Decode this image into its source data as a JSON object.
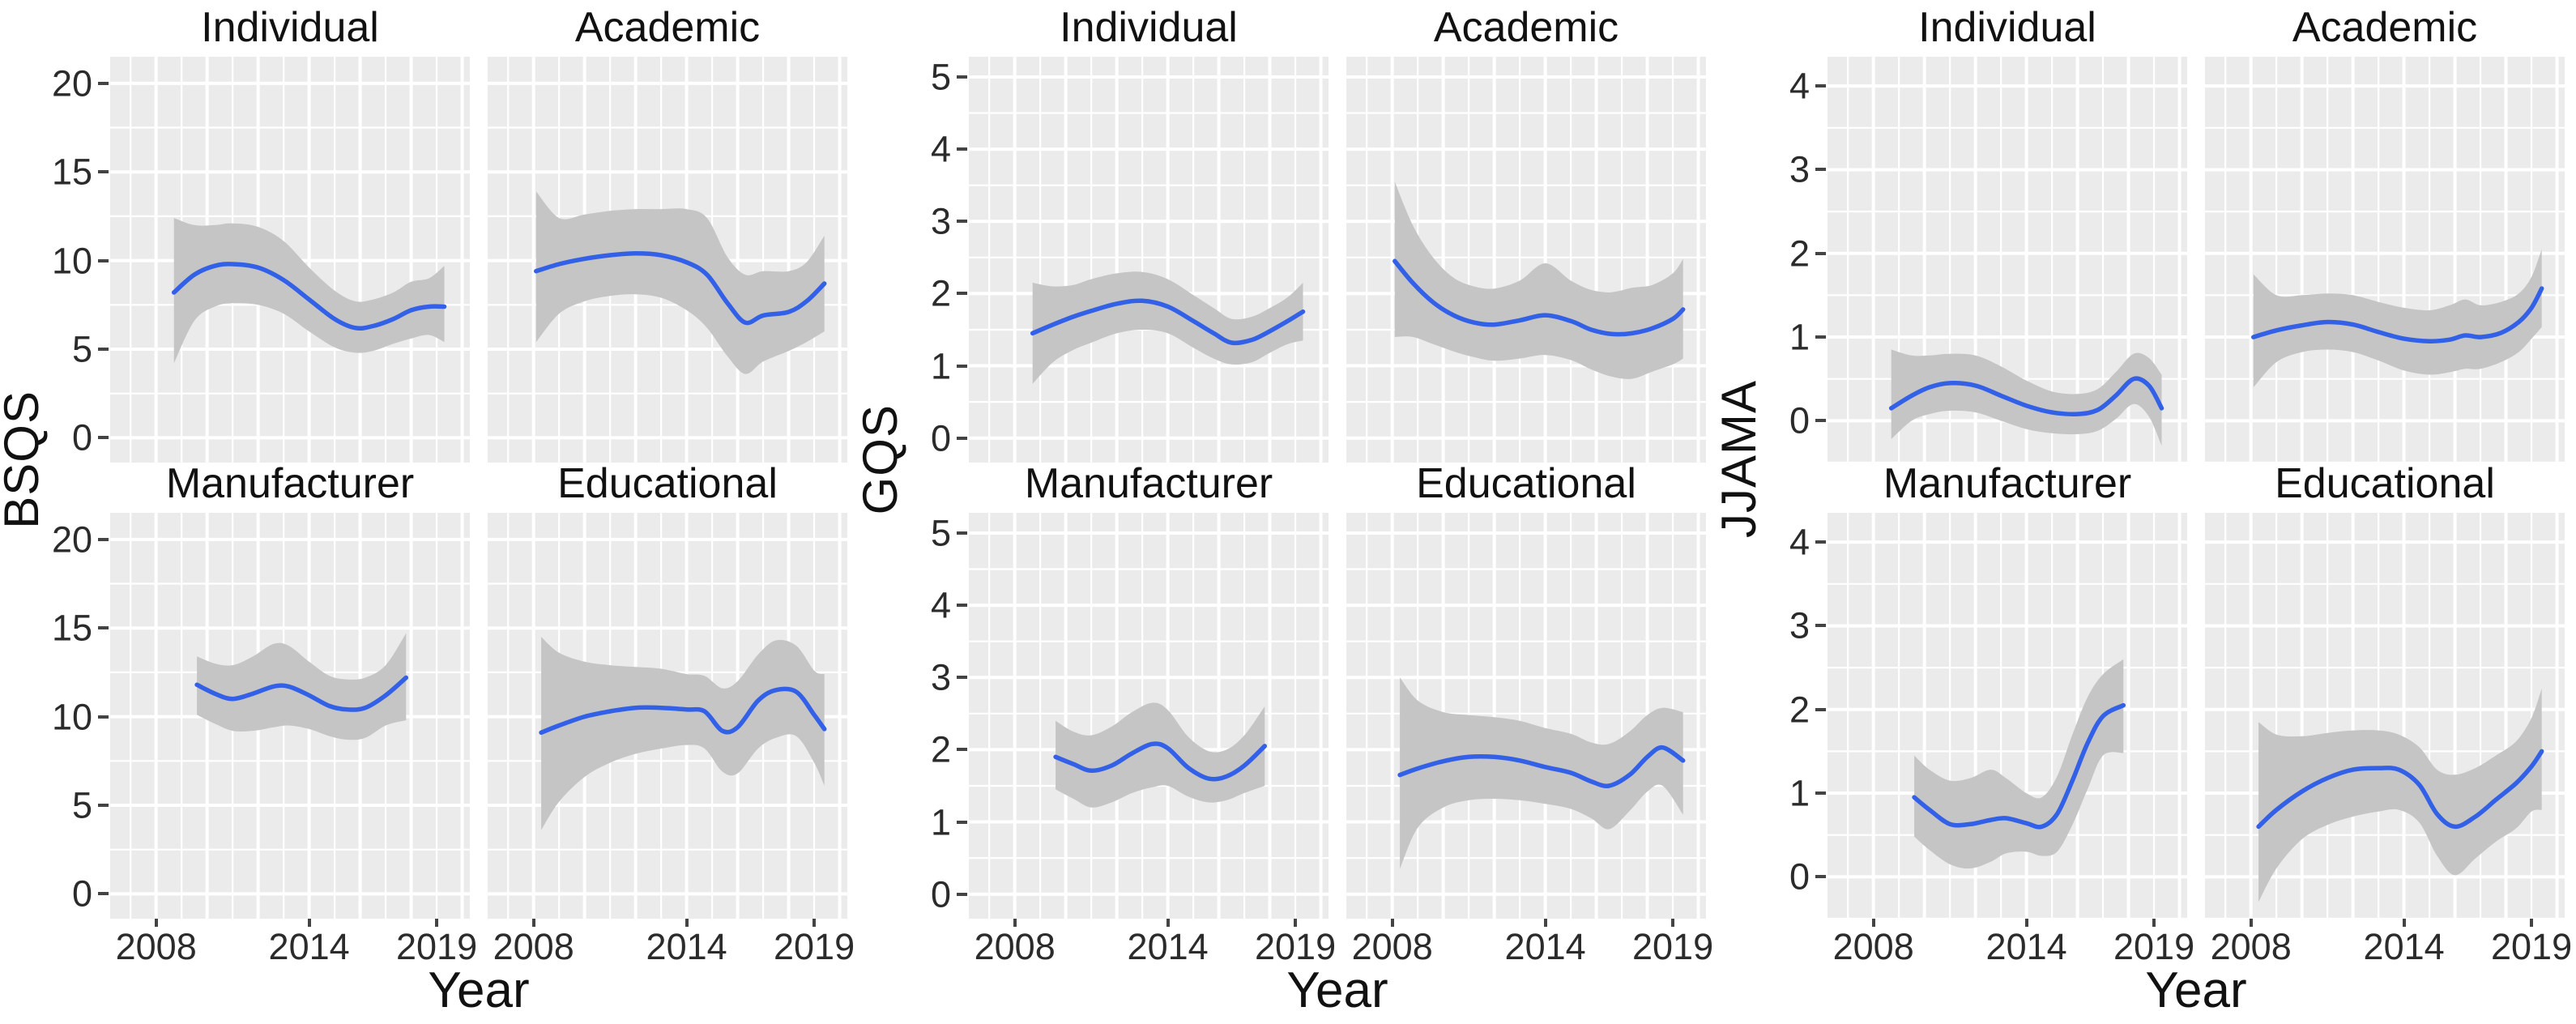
{
  "style": {
    "panel_bg": "#EBEBEB",
    "grid_color": "#FFFFFF",
    "ribbon_color": "#C5C5C5",
    "line_color": "#3260E6",
    "text_color": "#111111",
    "tick_text_color": "#2B2B2B",
    "tick_mark_color": "#444444"
  },
  "chart_data": [
    {
      "type": "line",
      "title": "",
      "ylabel": "BSQS",
      "xlabel": "Year",
      "legend": "none",
      "grid": "on",
      "x_ticks": [
        2008,
        2014,
        2019
      ],
      "y_ticks": [
        0,
        5,
        10,
        15,
        20
      ],
      "xlim_draw": [
        2006.2,
        2020.3
      ],
      "ylim_draw": [
        -1.4,
        21.5
      ],
      "facets": [
        {
          "label": "Individual",
          "x": [
            2008.7,
            2009.5,
            2010.3,
            2011,
            2012,
            2013,
            2014,
            2015,
            2015.8,
            2016.5,
            2017.3,
            2018,
            2018.7,
            2019.3
          ],
          "y": [
            8.2,
            9.2,
            9.7,
            9.8,
            9.6,
            8.9,
            7.8,
            6.7,
            6.2,
            6.3,
            6.7,
            7.2,
            7.4,
            7.4
          ],
          "lo": [
            4.2,
            6.6,
            7.4,
            7.6,
            7.5,
            7.0,
            6.0,
            5.1,
            4.8,
            4.9,
            5.3,
            5.6,
            5.8,
            5.4
          ],
          "hi": [
            12.4,
            12.0,
            12.0,
            12.1,
            11.9,
            11.1,
            9.6,
            8.3,
            7.7,
            7.8,
            8.2,
            8.8,
            9.0,
            9.7
          ]
        },
        {
          "label": "Academic",
          "x": [
            2008.1,
            2009,
            2010,
            2011,
            2012,
            2013,
            2014,
            2014.8,
            2015.6,
            2016.3,
            2017,
            2018,
            2018.7,
            2019.4
          ],
          "y": [
            9.4,
            9.8,
            10.1,
            10.3,
            10.4,
            10.3,
            9.9,
            9.2,
            7.6,
            6.5,
            6.9,
            7.1,
            7.7,
            8.7
          ],
          "lo": [
            5.4,
            7.0,
            7.7,
            8.0,
            8.1,
            7.9,
            7.2,
            6.2,
            4.6,
            3.6,
            4.3,
            4.9,
            5.4,
            6.0
          ],
          "hi": [
            13.9,
            12.4,
            12.6,
            12.8,
            12.9,
            12.9,
            12.9,
            12.4,
            10.2,
            9.2,
            9.4,
            9.4,
            9.9,
            11.4
          ]
        },
        {
          "label": "Manufacturer",
          "x": [
            2009.6,
            2010.3,
            2011,
            2011.8,
            2012.6,
            2013.2,
            2014,
            2014.8,
            2015.5,
            2016.2,
            2017,
            2017.8
          ],
          "y": [
            11.8,
            11.3,
            11.0,
            11.3,
            11.7,
            11.7,
            11.2,
            10.6,
            10.4,
            10.5,
            11.2,
            12.2
          ],
          "lo": [
            10.1,
            9.6,
            9.2,
            9.2,
            9.4,
            9.5,
            9.3,
            8.9,
            8.7,
            8.8,
            9.5,
            9.8
          ],
          "hi": [
            13.4,
            13.0,
            12.9,
            13.4,
            14.1,
            14.0,
            13.1,
            12.3,
            12.1,
            12.2,
            12.9,
            14.7
          ]
        },
        {
          "label": "Educational",
          "x": [
            2008.3,
            2009,
            2010,
            2011,
            2012,
            2013,
            2014,
            2014.7,
            2015.4,
            2016,
            2016.8,
            2017.5,
            2018.3,
            2019,
            2019.4
          ],
          "y": [
            9.1,
            9.5,
            10.0,
            10.3,
            10.5,
            10.5,
            10.4,
            10.3,
            9.2,
            9.4,
            10.9,
            11.5,
            11.4,
            10.1,
            9.3
          ],
          "lo": [
            3.6,
            5.2,
            6.6,
            7.4,
            7.9,
            8.2,
            8.4,
            8.2,
            6.9,
            6.8,
            8.2,
            8.8,
            8.9,
            7.4,
            6.1
          ],
          "hi": [
            14.5,
            13.6,
            13.1,
            12.9,
            12.8,
            12.7,
            12.4,
            12.3,
            11.6,
            12.0,
            13.5,
            14.3,
            14.0,
            12.6,
            12.4
          ]
        }
      ]
    },
    {
      "type": "line",
      "title": "",
      "ylabel": "GQS",
      "xlabel": "Year",
      "legend": "none",
      "grid": "on",
      "x_ticks": [
        2008,
        2014,
        2019
      ],
      "y_ticks": [
        0,
        1,
        2,
        3,
        4,
        5
      ],
      "xlim_draw": [
        2006.2,
        2020.3
      ],
      "ylim_draw": [
        -0.34,
        5.28
      ],
      "facets": [
        {
          "label": "Individual",
          "x": [
            2008.7,
            2009.5,
            2010.3,
            2011,
            2012,
            2013,
            2014,
            2015,
            2015.8,
            2016.5,
            2017.3,
            2018,
            2018.7,
            2019.3
          ],
          "y": [
            1.45,
            1.57,
            1.68,
            1.76,
            1.86,
            1.9,
            1.82,
            1.62,
            1.45,
            1.32,
            1.36,
            1.48,
            1.62,
            1.75
          ],
          "lo": [
            0.75,
            1.05,
            1.22,
            1.32,
            1.45,
            1.5,
            1.45,
            1.25,
            1.1,
            1.02,
            1.05,
            1.18,
            1.3,
            1.35
          ],
          "hi": [
            2.15,
            2.1,
            2.12,
            2.2,
            2.28,
            2.3,
            2.2,
            1.98,
            1.8,
            1.65,
            1.68,
            1.8,
            1.95,
            2.15
          ]
        },
        {
          "label": "Academic",
          "x": [
            2008.1,
            2008.8,
            2009.6,
            2010.4,
            2011.2,
            2012,
            2013,
            2014,
            2015,
            2015.8,
            2016.6,
            2017.4,
            2018.2,
            2019,
            2019.4
          ],
          "y": [
            2.45,
            2.15,
            1.88,
            1.7,
            1.6,
            1.57,
            1.63,
            1.7,
            1.62,
            1.5,
            1.44,
            1.45,
            1.52,
            1.65,
            1.78
          ],
          "lo": [
            1.4,
            1.4,
            1.3,
            1.2,
            1.12,
            1.07,
            1.1,
            1.15,
            1.08,
            0.95,
            0.85,
            0.82,
            0.92,
            1.02,
            1.1
          ],
          "hi": [
            3.55,
            2.95,
            2.5,
            2.22,
            2.1,
            2.07,
            2.18,
            2.42,
            2.18,
            2.05,
            2.02,
            2.08,
            2.12,
            2.28,
            2.48
          ]
        },
        {
          "label": "Manufacturer",
          "x": [
            2009.6,
            2010.3,
            2011,
            2011.8,
            2012.6,
            2013.4,
            2014,
            2014.8,
            2015.6,
            2016.3,
            2017,
            2017.8
          ],
          "y": [
            1.9,
            1.8,
            1.71,
            1.78,
            1.95,
            2.08,
            2.02,
            1.75,
            1.6,
            1.63,
            1.78,
            2.05
          ],
          "lo": [
            1.45,
            1.32,
            1.2,
            1.27,
            1.4,
            1.48,
            1.5,
            1.35,
            1.27,
            1.3,
            1.4,
            1.5
          ],
          "hi": [
            2.4,
            2.25,
            2.2,
            2.32,
            2.52,
            2.65,
            2.55,
            2.18,
            1.98,
            2.0,
            2.2,
            2.6
          ]
        },
        {
          "label": "Educational",
          "x": [
            2008.3,
            2009,
            2010,
            2011,
            2012,
            2013,
            2014,
            2015,
            2015.8,
            2016.5,
            2017.3,
            2018,
            2018.6,
            2019.4
          ],
          "y": [
            1.65,
            1.74,
            1.84,
            1.9,
            1.9,
            1.85,
            1.76,
            1.68,
            1.56,
            1.5,
            1.65,
            1.9,
            2.03,
            1.85
          ],
          "lo": [
            0.35,
            0.92,
            1.2,
            1.3,
            1.32,
            1.3,
            1.25,
            1.18,
            1.05,
            0.9,
            1.15,
            1.42,
            1.5,
            1.1
          ],
          "hi": [
            3.0,
            2.68,
            2.52,
            2.48,
            2.45,
            2.4,
            2.3,
            2.22,
            2.1,
            2.08,
            2.25,
            2.48,
            2.58,
            2.52
          ]
        }
      ]
    },
    {
      "type": "line",
      "title": "",
      "ylabel": "JJAMA",
      "xlabel": "Year",
      "legend": "none",
      "grid": "on",
      "x_ticks": [
        2008,
        2014,
        2019
      ],
      "y_ticks": [
        0,
        1,
        2,
        3,
        4
      ],
      "xlim_draw": [
        2006.2,
        2020.3
      ],
      "ylim_draw": [
        -0.5,
        4.35
      ],
      "facets": [
        {
          "label": "Individual",
          "x": [
            2008.7,
            2009.5,
            2010.2,
            2011,
            2012,
            2013,
            2014,
            2015,
            2016,
            2016.8,
            2017.5,
            2018.2,
            2018.8,
            2019.3
          ],
          "y": [
            0.15,
            0.3,
            0.4,
            0.45,
            0.42,
            0.3,
            0.18,
            0.1,
            0.08,
            0.13,
            0.3,
            0.5,
            0.42,
            0.15
          ],
          "lo": [
            -0.22,
            0.0,
            0.08,
            0.12,
            0.1,
            0.0,
            -0.1,
            -0.15,
            -0.16,
            -0.12,
            0.02,
            0.2,
            0.05,
            -0.3
          ],
          "hi": [
            0.85,
            0.78,
            0.78,
            0.8,
            0.78,
            0.65,
            0.48,
            0.35,
            0.32,
            0.38,
            0.58,
            0.8,
            0.75,
            0.55
          ]
        },
        {
          "label": "Academic",
          "x": [
            2008.1,
            2009,
            2010,
            2011,
            2012,
            2013,
            2014,
            2015,
            2015.8,
            2016.4,
            2017,
            2017.8,
            2018.5,
            2019,
            2019.4
          ],
          "y": [
            1.0,
            1.08,
            1.14,
            1.18,
            1.15,
            1.06,
            0.98,
            0.95,
            0.97,
            1.02,
            1.0,
            1.05,
            1.18,
            1.35,
            1.58
          ],
          "lo": [
            0.4,
            0.7,
            0.82,
            0.85,
            0.82,
            0.72,
            0.6,
            0.55,
            0.58,
            0.62,
            0.62,
            0.7,
            0.82,
            0.98,
            1.12
          ],
          "hi": [
            1.75,
            1.5,
            1.5,
            1.52,
            1.5,
            1.42,
            1.35,
            1.32,
            1.38,
            1.45,
            1.38,
            1.42,
            1.52,
            1.72,
            2.05
          ]
        },
        {
          "label": "Manufacturer",
          "x": [
            2009.6,
            2010.2,
            2011,
            2011.8,
            2012.6,
            2013.2,
            2014,
            2014.6,
            2015.2,
            2015.8,
            2016.4,
            2017,
            2017.8
          ],
          "y": [
            0.95,
            0.8,
            0.63,
            0.63,
            0.68,
            0.7,
            0.64,
            0.6,
            0.75,
            1.15,
            1.6,
            1.92,
            2.05
          ],
          "lo": [
            0.48,
            0.32,
            0.15,
            0.1,
            0.18,
            0.28,
            0.3,
            0.25,
            0.3,
            0.62,
            1.05,
            1.45,
            1.48
          ],
          "hi": [
            1.45,
            1.28,
            1.15,
            1.18,
            1.28,
            1.18,
            1.0,
            0.95,
            1.2,
            1.7,
            2.15,
            2.42,
            2.6
          ]
        },
        {
          "label": "Educational",
          "x": [
            2008.3,
            2009,
            2010,
            2011,
            2012,
            2013,
            2013.8,
            2014.6,
            2015.3,
            2016,
            2016.8,
            2017.6,
            2018.4,
            2019,
            2019.4
          ],
          "y": [
            0.6,
            0.8,
            1.02,
            1.18,
            1.28,
            1.3,
            1.28,
            1.1,
            0.75,
            0.6,
            0.72,
            0.92,
            1.12,
            1.32,
            1.5
          ],
          "lo": [
            -0.3,
            0.1,
            0.45,
            0.62,
            0.72,
            0.78,
            0.8,
            0.65,
            0.25,
            0.02,
            0.22,
            0.42,
            0.58,
            0.78,
            0.8
          ],
          "hi": [
            1.85,
            1.7,
            1.68,
            1.72,
            1.75,
            1.75,
            1.7,
            1.55,
            1.28,
            1.22,
            1.3,
            1.45,
            1.62,
            1.9,
            2.25
          ]
        }
      ]
    }
  ]
}
